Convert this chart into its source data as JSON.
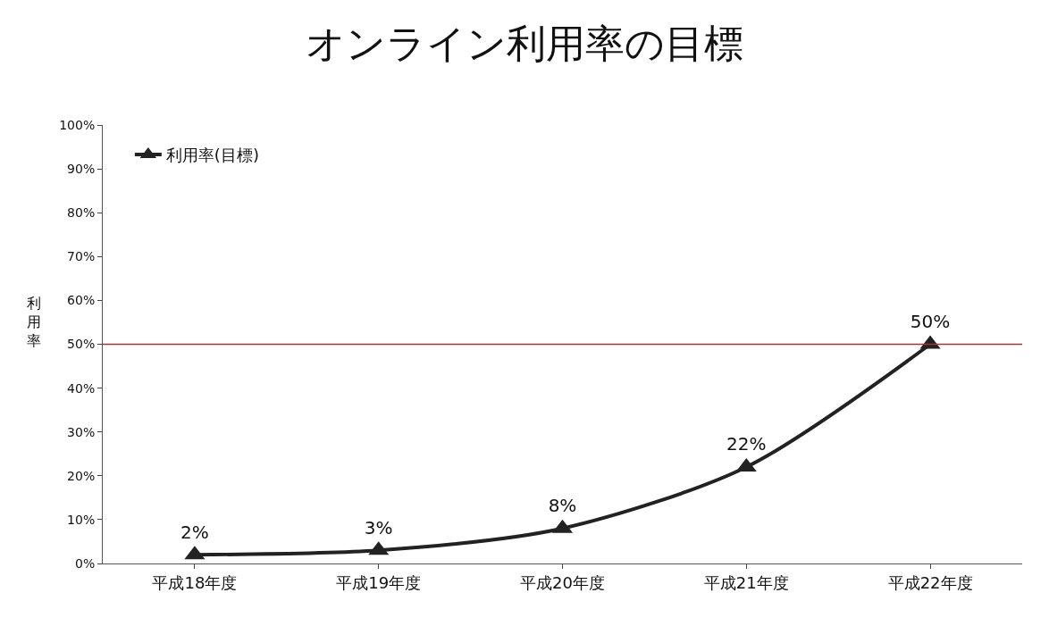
{
  "chart_data": {
    "type": "line",
    "title": "オンライン利用率の目標",
    "ylabel": "利用率",
    "categories": [
      "平成18年度",
      "平成19年度",
      "平成20年度",
      "平成21年度",
      "平成22年度"
    ],
    "series": [
      {
        "name": "利用率(目標)",
        "color": "#222222",
        "values": [
          2,
          3,
          8,
          22,
          50
        ],
        "value_labels": [
          "2%",
          "3%",
          "8%",
          "22%",
          "50%"
        ]
      }
    ],
    "ylim": [
      0,
      100
    ],
    "yticks": [
      {
        "value": 0,
        "label": "0%"
      },
      {
        "value": 10,
        "label": "10%"
      },
      {
        "value": 20,
        "label": "20%"
      },
      {
        "value": 30,
        "label": "30%"
      },
      {
        "value": 40,
        "label": "40%"
      },
      {
        "value": 50,
        "label": "50%"
      },
      {
        "value": 60,
        "label": "60%"
      },
      {
        "value": 70,
        "label": "70%"
      },
      {
        "value": 80,
        "label": "80%"
      },
      {
        "value": 90,
        "label": "90%"
      },
      {
        "value": 100,
        "label": "100%"
      }
    ],
    "ref_lines": [
      {
        "axis": "y",
        "value": 50,
        "color": "#cc2222"
      }
    ],
    "legend": "top left",
    "marker": "triangle",
    "line_style": "solid",
    "grid": false
  }
}
